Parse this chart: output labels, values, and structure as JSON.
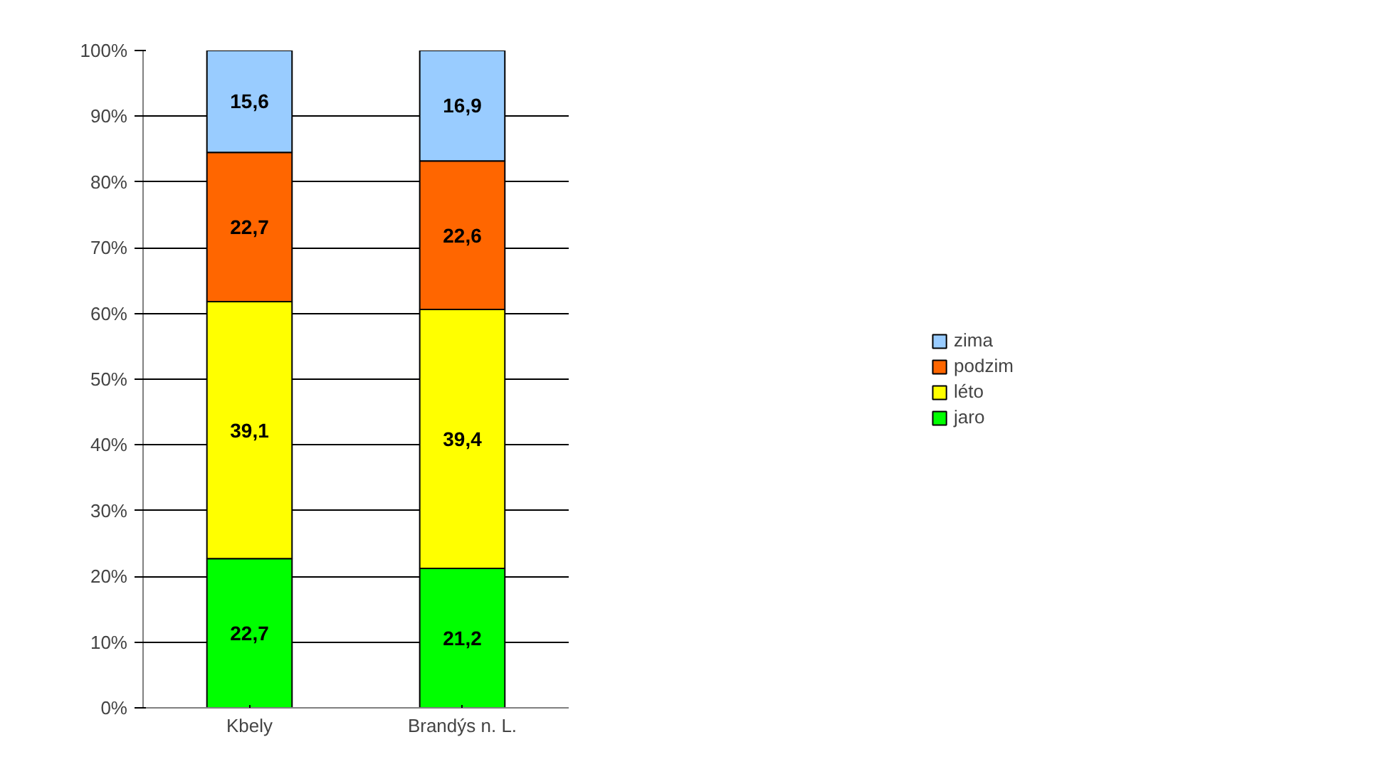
{
  "chart_data": {
    "type": "bar",
    "stacked": true,
    "categories": [
      "Kbely",
      "Brandýs n. L."
    ],
    "series": [
      {
        "name": "jaro",
        "color": "#00ff00",
        "values": [
          22.7,
          21.2
        ],
        "value_labels": [
          "22,7",
          "21,2"
        ]
      },
      {
        "name": "léto",
        "color": "#ffff00",
        "values": [
          39.1,
          39.4
        ],
        "value_labels": [
          "39,1",
          "39,4"
        ]
      },
      {
        "name": "podzim",
        "color": "#ff6600",
        "values": [
          22.7,
          22.6
        ],
        "value_labels": [
          "22,7",
          "22,6"
        ]
      },
      {
        "name": "zima",
        "color": "#99ccff",
        "values": [
          15.6,
          16.9
        ],
        "value_labels": [
          "15,6",
          "16,9"
        ]
      }
    ],
    "ylim": [
      0,
      100
    ],
    "yticks": [
      {
        "value": 0,
        "label": "0%"
      },
      {
        "value": 10,
        "label": "10%"
      },
      {
        "value": 20,
        "label": "20%"
      },
      {
        "value": 30,
        "label": "30%"
      },
      {
        "value": 40,
        "label": "40%"
      },
      {
        "value": 50,
        "label": "50%"
      },
      {
        "value": 60,
        "label": "60%"
      },
      {
        "value": 70,
        "label": "70%"
      },
      {
        "value": 80,
        "label": "80%"
      },
      {
        "value": 90,
        "label": "90%"
      },
      {
        "value": 100,
        "label": "100%"
      }
    ],
    "grid": "y",
    "legend": "right"
  }
}
